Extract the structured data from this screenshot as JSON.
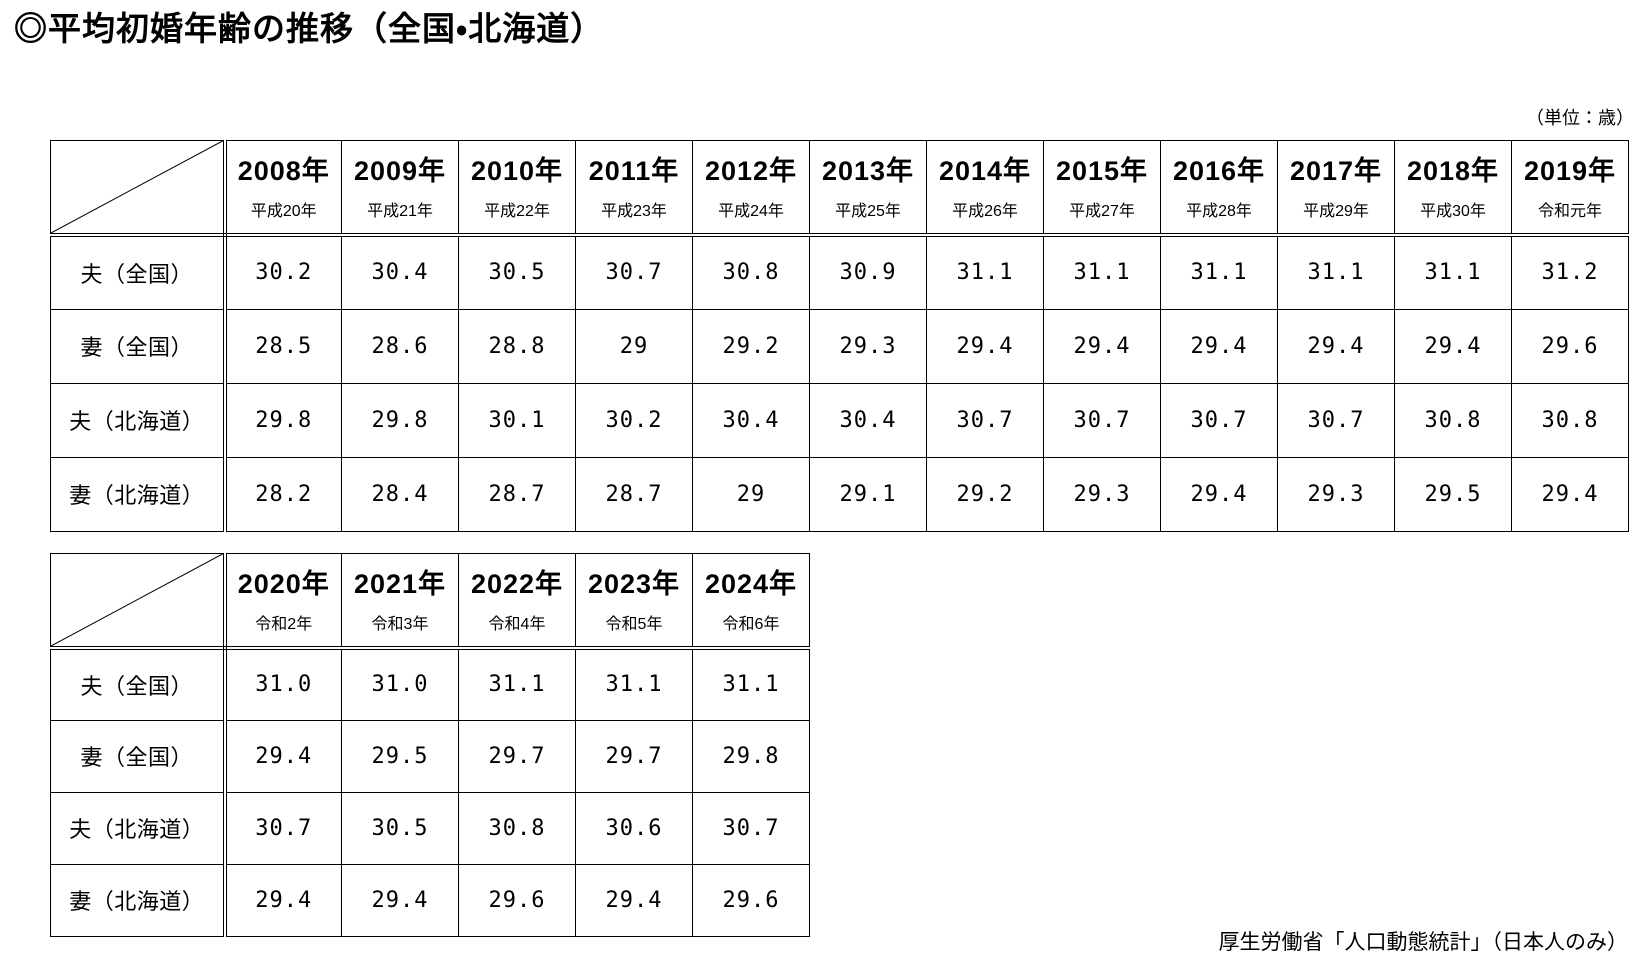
{
  "page": {
    "title": "◎平均初婚年齢の推移（全国・北海道）",
    "unit_note": "（単位：歳）",
    "source_note": "厚生労働省「人口動態統計」（日本人のみ）"
  },
  "table1": {
    "columns": [
      {
        "year": "2008年",
        "era": "平成20年"
      },
      {
        "year": "2009年",
        "era": "平成21年"
      },
      {
        "year": "2010年",
        "era": "平成22年"
      },
      {
        "year": "2011年",
        "era": "平成23年"
      },
      {
        "year": "2012年",
        "era": "平成24年"
      },
      {
        "year": "2013年",
        "era": "平成25年"
      },
      {
        "year": "2014年",
        "era": "平成26年"
      },
      {
        "year": "2015年",
        "era": "平成27年"
      },
      {
        "year": "2016年",
        "era": "平成28年"
      },
      {
        "year": "2017年",
        "era": "平成29年"
      },
      {
        "year": "2018年",
        "era": "平成30年"
      },
      {
        "year": "2019年",
        "era": "令和元年"
      }
    ],
    "rows": [
      {
        "label": "夫（全国）",
        "values": [
          "30.2",
          "30.4",
          "30.5",
          "30.7",
          "30.8",
          "30.9",
          "31.1",
          "31.1",
          "31.1",
          "31.1",
          "31.1",
          "31.2"
        ]
      },
      {
        "label": "妻（全国）",
        "values": [
          "28.5",
          "28.6",
          "28.8",
          "29",
          "29.2",
          "29.3",
          "29.4",
          "29.4",
          "29.4",
          "29.4",
          "29.4",
          "29.6"
        ]
      },
      {
        "label": "夫（北海道）",
        "values": [
          "29.8",
          "29.8",
          "30.1",
          "30.2",
          "30.4",
          "30.4",
          "30.7",
          "30.7",
          "30.7",
          "30.7",
          "30.8",
          "30.8"
        ]
      },
      {
        "label": "妻（北海道）",
        "values": [
          "28.2",
          "28.4",
          "28.7",
          "28.7",
          "29",
          "29.1",
          "29.2",
          "29.3",
          "29.4",
          "29.3",
          "29.5",
          "29.4"
        ]
      }
    ]
  },
  "table2": {
    "columns": [
      {
        "year": "2020年",
        "era": "令和2年"
      },
      {
        "year": "2021年",
        "era": "令和3年"
      },
      {
        "year": "2022年",
        "era": "令和4年"
      },
      {
        "year": "2023年",
        "era": "令和5年"
      },
      {
        "year": "2024年",
        "era": "令和6年"
      }
    ],
    "rows": [
      {
        "label": "夫（全国）",
        "values": [
          "31.0",
          "31.0",
          "31.1",
          "31.1",
          "31.1"
        ]
      },
      {
        "label": "妻（全国）",
        "values": [
          "29.4",
          "29.5",
          "29.7",
          "29.7",
          "29.8"
        ]
      },
      {
        "label": "夫（北海道）",
        "values": [
          "30.7",
          "30.5",
          "30.8",
          "30.6",
          "30.7"
        ]
      },
      {
        "label": "妻（北海道）",
        "values": [
          "29.4",
          "29.4",
          "29.6",
          "29.4",
          "29.6"
        ]
      }
    ]
  },
  "layout": {
    "label_col_width": 174,
    "data_col_width": 117
  }
}
